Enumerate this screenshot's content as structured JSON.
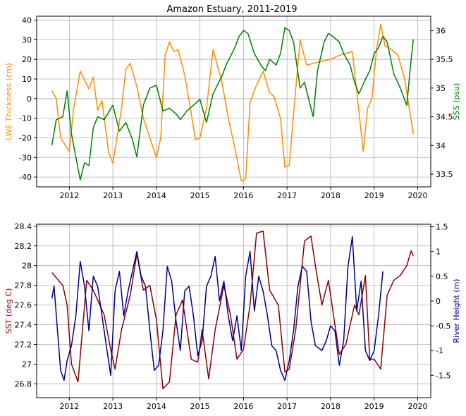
{
  "title": "Amazon Estuary, 2011-2019",
  "chart_data": [
    {
      "type": "line",
      "title": "Amazon Estuary, 2011-2019",
      "xlim": [
        2011.25,
        2020.3
      ],
      "x_ticks": [
        2012,
        2013,
        2014,
        2015,
        2016,
        2017,
        2018,
        2019,
        2020
      ],
      "grid": true,
      "left_axis": {
        "label": "LWE Thickness (cm)",
        "color": "#ff8c00",
        "ylim": [
          -45,
          42
        ],
        "ticks": [
          -40,
          -30,
          -20,
          -10,
          0,
          10,
          20,
          30,
          40
        ]
      },
      "right_axis": {
        "label": "SSS (psu)",
        "color": "#008000",
        "ylim": [
          33.28,
          36.25
        ],
        "ticks": [
          33.5,
          34.0,
          34.5,
          35.0,
          35.5,
          36.0
        ]
      },
      "series": [
        {
          "axis": "left",
          "color": "#ff8c00",
          "x": [
            2011.6,
            2011.7,
            2011.8,
            2012.0,
            2012.1,
            2012.25,
            2012.45,
            2012.55,
            2012.65,
            2012.75,
            2012.9,
            2013.0,
            2013.2,
            2013.3,
            2013.4,
            2013.55,
            2013.7,
            2013.85,
            2014.0,
            2014.1,
            2014.2,
            2014.3,
            2014.4,
            2014.5,
            2014.65,
            2014.9,
            2015.0,
            2015.15,
            2015.3,
            2015.5,
            2015.65,
            2015.8,
            2015.95,
            2016.05,
            2016.15,
            2016.3,
            2016.45,
            2016.6,
            2016.7,
            2016.85,
            2016.95,
            2017.05,
            2017.2,
            2017.3,
            2017.45,
            2017.6,
            2017.8,
            2018.0,
            2018.2,
            2018.5,
            2018.75,
            2018.85,
            2018.95,
            2019.05,
            2019.15,
            2019.25,
            2019.4,
            2019.55,
            2019.7,
            2019.9
          ],
          "y": [
            4,
            0,
            -20,
            -27,
            -5,
            14,
            5,
            11,
            -6,
            -1,
            -27,
            -33,
            -5,
            15,
            18,
            6,
            -10,
            -20,
            -30,
            -20,
            22,
            29,
            24,
            25,
            12,
            -21,
            -20,
            -5,
            25,
            9,
            -10,
            -25,
            -42,
            -41,
            -2,
            7,
            14,
            3,
            1,
            -10,
            -35,
            -34,
            5,
            30,
            17,
            18,
            19,
            20,
            22,
            24,
            -27,
            -5,
            0,
            24,
            38,
            27,
            25,
            22,
            10,
            -18
          ]
        },
        {
          "axis": "right",
          "color": "#008000",
          "x": [
            2011.6,
            2011.7,
            2011.85,
            2011.95,
            2012.05,
            2012.15,
            2012.25,
            2012.35,
            2012.45,
            2012.55,
            2012.65,
            2012.8,
            2013.0,
            2013.15,
            2013.3,
            2013.45,
            2013.55,
            2013.7,
            2013.85,
            2014.0,
            2014.15,
            2014.3,
            2014.45,
            2014.55,
            2014.7,
            2014.85,
            2015.0,
            2015.15,
            2015.3,
            2015.5,
            2015.6,
            2015.7,
            2015.8,
            2015.9,
            2016.0,
            2016.1,
            2016.25,
            2016.4,
            2016.5,
            2016.6,
            2016.75,
            2016.85,
            2016.95,
            2017.05,
            2017.15,
            2017.3,
            2017.4,
            2017.5,
            2017.6,
            2017.7,
            2017.85,
            2017.95,
            2018.05,
            2018.2,
            2018.3,
            2018.45,
            2018.55,
            2018.65,
            2018.8,
            2018.9,
            2019.0,
            2019.1,
            2019.2,
            2019.3,
            2019.45,
            2019.6,
            2019.75,
            2019.85,
            2019.9
          ],
          "y": [
            34.0,
            34.45,
            34.5,
            34.95,
            34.2,
            33.8,
            33.4,
            33.7,
            33.65,
            34.3,
            34.5,
            34.45,
            34.7,
            34.25,
            34.4,
            34.1,
            33.8,
            34.7,
            35.0,
            35.05,
            34.6,
            34.65,
            34.55,
            34.45,
            34.6,
            34.7,
            34.8,
            34.4,
            34.9,
            35.2,
            35.4,
            35.55,
            35.7,
            35.9,
            36.0,
            35.95,
            35.6,
            35.4,
            35.3,
            35.5,
            35.4,
            35.6,
            36.05,
            36.0,
            35.8,
            35.0,
            35.1,
            34.8,
            34.5,
            35.3,
            35.8,
            35.95,
            35.9,
            35.8,
            35.6,
            35.4,
            35.1,
            34.9,
            35.15,
            35.3,
            35.6,
            35.7,
            35.9,
            35.8,
            35.25,
            35.0,
            34.7,
            35.5,
            35.85
          ]
        }
      ]
    },
    {
      "type": "line",
      "xlim": [
        2011.25,
        2020.3
      ],
      "x_ticks": [
        2012,
        2013,
        2014,
        2015,
        2016,
        2017,
        2018,
        2019,
        2020
      ],
      "grid": true,
      "left_axis": {
        "label": "SST (deg C)",
        "color": "#8b0000",
        "ylim": [
          26.66,
          28.42
        ],
        "ticks": [
          26.8,
          27.0,
          27.2,
          27.4,
          27.6,
          27.8,
          28.0,
          28.2,
          28.4
        ]
      },
      "right_axis": {
        "label": "River Height (m)",
        "color": "#00008b",
        "ylim": [
          -1.95,
          1.55
        ],
        "ticks": [
          -1.5,
          -1.0,
          -0.5,
          0.0,
          0.5,
          1.0,
          1.5
        ]
      },
      "series": [
        {
          "axis": "left",
          "color": "#8b0000",
          "x": [
            2011.6,
            2011.75,
            2011.85,
            2011.95,
            2012.05,
            2012.2,
            2012.4,
            2012.55,
            2012.7,
            2012.8,
            2012.95,
            2013.05,
            2013.2,
            2013.4,
            2013.55,
            2013.7,
            2013.85,
            2014.0,
            2014.15,
            2014.3,
            2014.45,
            2014.6,
            2014.8,
            2014.95,
            2015.05,
            2015.2,
            2015.35,
            2015.55,
            2015.7,
            2015.85,
            2016.0,
            2016.15,
            2016.3,
            2016.45,
            2016.6,
            2016.8,
            2016.95,
            2017.05,
            2017.2,
            2017.4,
            2017.55,
            2017.65,
            2017.8,
            2017.95,
            2018.1,
            2018.2,
            2018.35,
            2018.55,
            2018.65,
            2018.8,
            2018.9,
            2019.0,
            2019.15,
            2019.3,
            2019.45,
            2019.6,
            2019.75,
            2019.85,
            2019.9
          ],
          "y": [
            27.93,
            27.85,
            27.8,
            27.6,
            27.0,
            26.82,
            27.85,
            27.75,
            27.6,
            27.5,
            27.15,
            26.95,
            27.35,
            27.7,
            28.12,
            27.75,
            27.8,
            27.45,
            26.75,
            26.82,
            27.5,
            27.65,
            27.05,
            27.02,
            27.35,
            26.85,
            27.35,
            27.8,
            27.5,
            27.05,
            27.15,
            27.6,
            28.33,
            28.35,
            27.75,
            27.6,
            26.92,
            26.95,
            27.35,
            28.25,
            28.3,
            28.0,
            27.6,
            27.85,
            27.4,
            27.1,
            27.2,
            27.6,
            27.5,
            27.9,
            27.05,
            27.05,
            26.95,
            27.7,
            27.85,
            27.9,
            28.0,
            28.15,
            28.1
          ]
        },
        {
          "axis": "right",
          "color": "#00008b",
          "x": [
            2011.6,
            2011.65,
            2011.72,
            2011.8,
            2011.88,
            2011.95,
            2012.05,
            2012.15,
            2012.25,
            2012.35,
            2012.45,
            2012.55,
            2012.65,
            2012.75,
            2012.85,
            2012.95,
            2013.05,
            2013.15,
            2013.25,
            2013.35,
            2013.45,
            2013.55,
            2013.65,
            2013.75,
            2013.85,
            2013.95,
            2014.05,
            2014.15,
            2014.25,
            2014.35,
            2014.45,
            2014.55,
            2014.65,
            2014.75,
            2014.85,
            2014.95,
            2015.05,
            2015.15,
            2015.25,
            2015.35,
            2015.45,
            2015.55,
            2015.65,
            2015.75,
            2015.85,
            2015.95,
            2016.05,
            2016.15,
            2016.25,
            2016.35,
            2016.45,
            2016.55,
            2016.65,
            2016.75,
            2016.85,
            2016.95,
            2017.05,
            2017.15,
            2017.25,
            2017.35,
            2017.45,
            2017.55,
            2017.65,
            2017.8,
            2017.9,
            2018.0,
            2018.1,
            2018.2,
            2018.3,
            2018.4,
            2018.5,
            2018.6,
            2018.7,
            2018.8,
            2018.9,
            2019.0,
            2019.1,
            2019.2
          ],
          "y": [
            0.05,
            0.3,
            -0.5,
            -1.4,
            -1.6,
            -1.2,
            -0.9,
            -0.3,
            0.8,
            0.3,
            -0.6,
            0.5,
            0.3,
            -0.3,
            -0.9,
            -1.5,
            0.2,
            0.6,
            -0.3,
            0.2,
            0.6,
            1.0,
            0.5,
            0.3,
            -0.6,
            -1.4,
            -1.3,
            -0.6,
            0.7,
            0.4,
            -0.4,
            -1.0,
            0.2,
            0.3,
            -0.3,
            -1.1,
            -0.8,
            0.3,
            0.5,
            0.9,
            0.0,
            0.4,
            -0.3,
            -0.8,
            -0.3,
            -1.0,
            0.5,
            1.0,
            -0.2,
            0.5,
            0.2,
            -0.3,
            -0.9,
            -1.0,
            -1.4,
            -1.6,
            -1.2,
            -0.6,
            0.3,
            0.7,
            0.6,
            -0.4,
            -0.9,
            -1.0,
            -0.8,
            -0.5,
            -0.6,
            -1.3,
            -0.8,
            0.7,
            1.3,
            -0.2,
            0.4,
            -1.0,
            -1.2,
            -1.0,
            -0.3,
            0.6
          ]
        }
      ]
    }
  ]
}
